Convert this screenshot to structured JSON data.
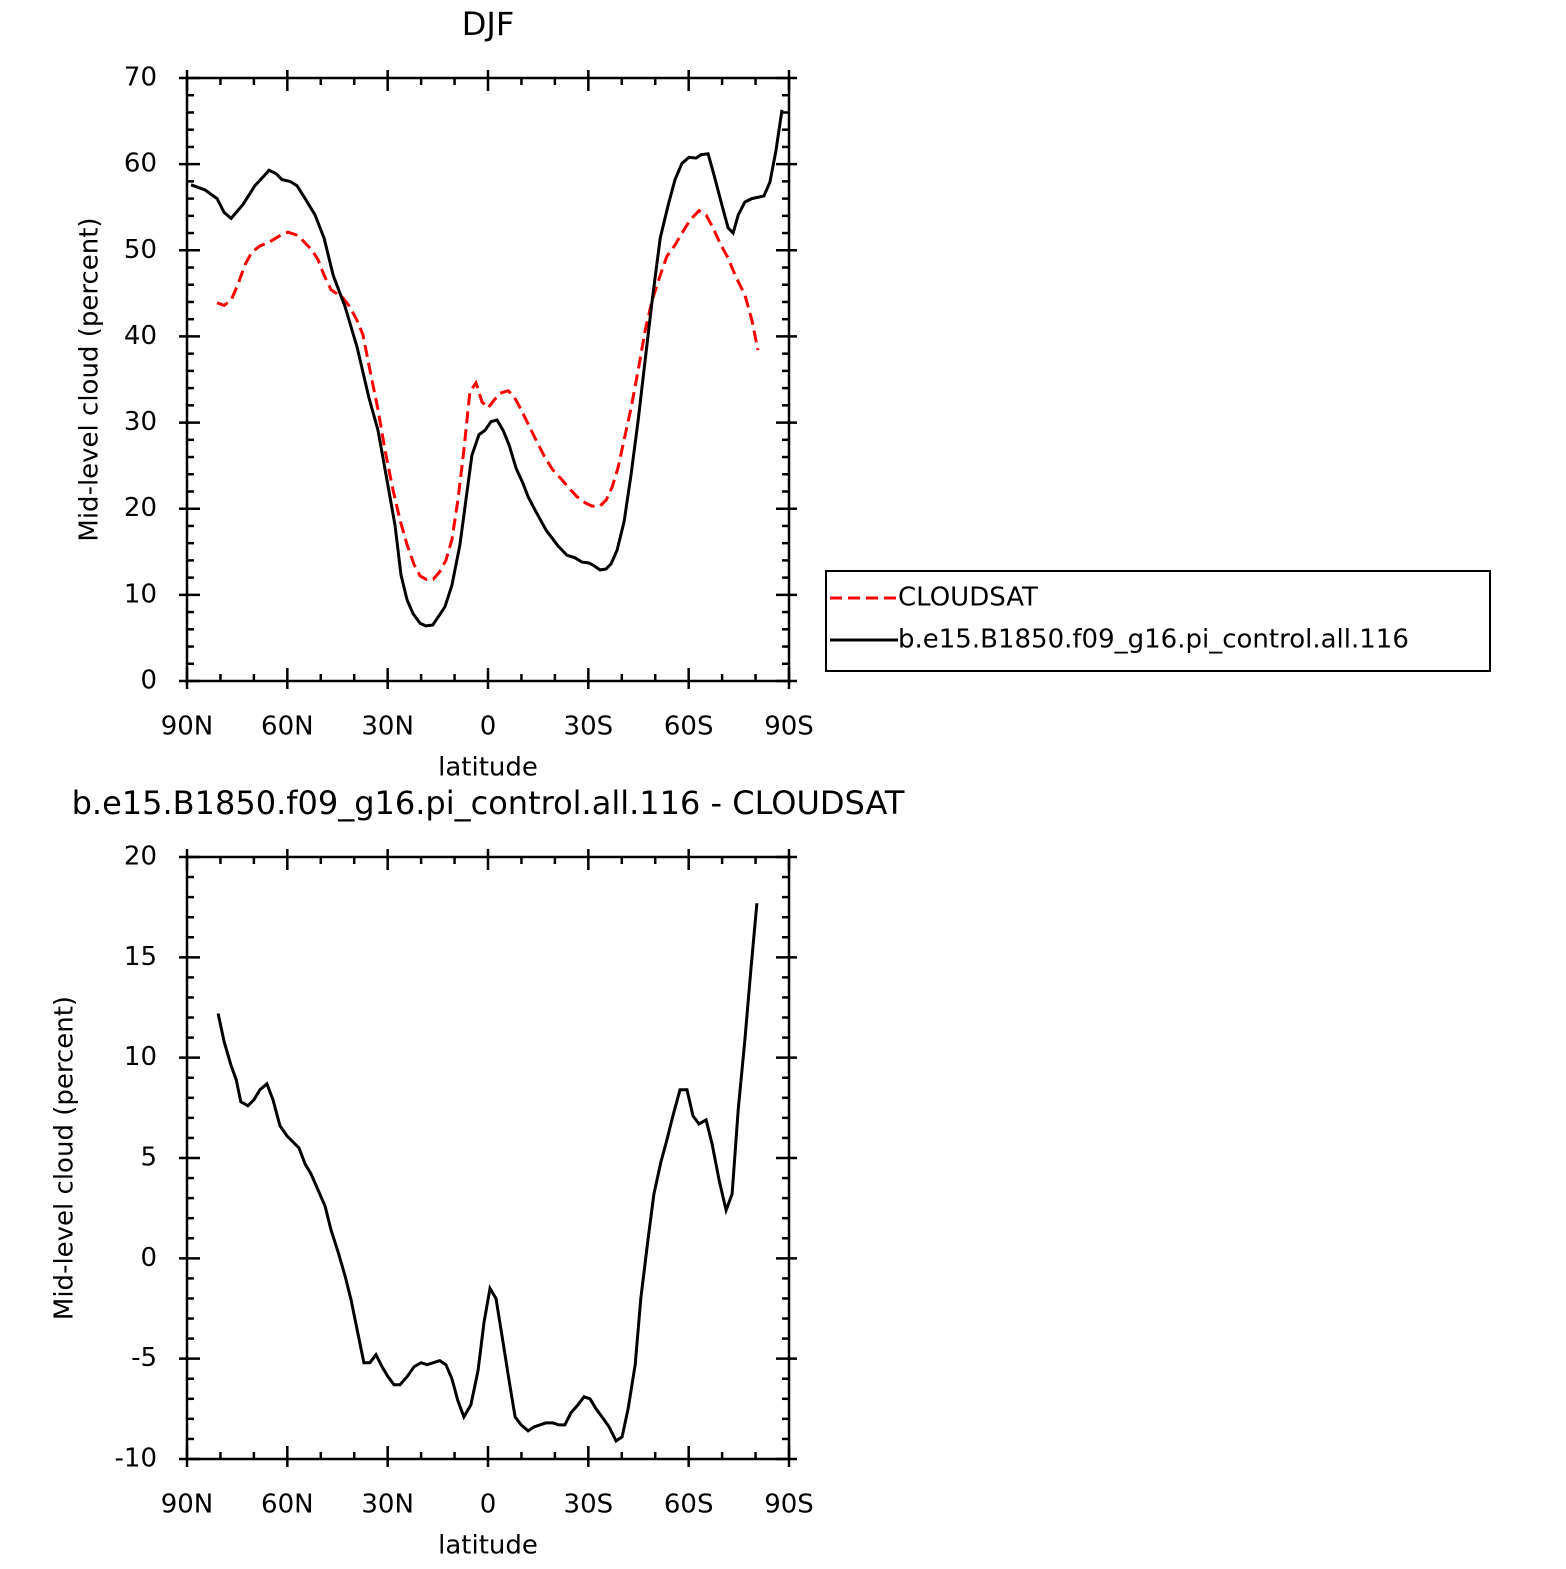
{
  "chart_data": [
    {
      "type": "line",
      "title": "DJF",
      "xlabel": "latitude",
      "ylabel": "Mid-level cloud (percent)",
      "xlim": [
        90,
        -90
      ],
      "xticks": [
        {
          "value": 90,
          "label": "90N"
        },
        {
          "value": 60,
          "label": "60N"
        },
        {
          "value": 30,
          "label": "30N"
        },
        0,
        {
          "value": -30,
          "label": "30S"
        },
        {
          "value": -60,
          "label": "60S"
        },
        {
          "value": -90,
          "label": "90S"
        }
      ],
      "ylim": [
        0,
        70
      ],
      "yticks": [
        0,
        10,
        20,
        30,
        40,
        50,
        60,
        70
      ],
      "legend": "right",
      "series": [
        {
          "name": "CLOUDSAT",
          "color": "#ff0000",
          "dash": true,
          "x": [
            81.0,
            78.9,
            76.8,
            74.8,
            72.7,
            70.6,
            68.2,
            65.2,
            62.2,
            59.8,
            57.4,
            55.3,
            52.6,
            50.8,
            49.0,
            46.9,
            43.4,
            41.3,
            39.2,
            37.4,
            35.3,
            32.9,
            30.8,
            28.4,
            26.3,
            24.2,
            22.1,
            20.3,
            18.5,
            16.4,
            14.4,
            12.6,
            10.8,
            9.0,
            7.2,
            5.4,
            3.6,
            1.8,
            0.0,
            -1.8,
            -3.6,
            -6.0,
            -7.8,
            -9.9,
            -12.3,
            -14.7,
            -17.1,
            -19.4,
            -21.8,
            -24.2,
            -26.6,
            -29.0,
            -31.1,
            -33.5,
            -35.3,
            -37.1,
            -38.9,
            -40.7,
            -42.8,
            -44.9,
            -47.0,
            -49.1,
            -51.5,
            -53.5,
            -55.9,
            -58.0,
            -60.4,
            -63.1,
            -65.2,
            -67.3,
            -69.4,
            -71.8,
            -73.9,
            -76.8,
            -78.9,
            -80.7
          ],
          "values": [
            43.9,
            43.6,
            44.2,
            46.0,
            48.3,
            49.8,
            50.5,
            51.0,
            51.7,
            52.1,
            51.8,
            51.1,
            50.0,
            48.9,
            47.1,
            45.4,
            44.5,
            43.4,
            41.9,
            40.2,
            36.1,
            31.5,
            26.8,
            22.2,
            18.7,
            15.8,
            13.5,
            12.2,
            11.8,
            11.8,
            12.7,
            14.0,
            16.4,
            21.0,
            26.8,
            33.6,
            34.6,
            32.4,
            31.7,
            32.6,
            33.4,
            33.7,
            33.0,
            31.5,
            29.6,
            27.7,
            25.9,
            24.5,
            23.5,
            22.4,
            21.4,
            20.7,
            20.3,
            20.3,
            21.0,
            22.5,
            24.8,
            28.0,
            31.7,
            36.1,
            40.7,
            44.2,
            47.1,
            49.3,
            50.6,
            52.0,
            53.5,
            54.6,
            54.1,
            52.6,
            50.8,
            49.1,
            47.1,
            44.8,
            41.9,
            38.4
          ]
        },
        {
          "name": "b.e15.B1850.f09_g16.pi_control.all.116",
          "color": "#000000",
          "dash": false,
          "x": [
            88.8,
            84.6,
            81.0,
            78.9,
            76.8,
            73.3,
            69.7,
            66.1,
            65.5,
            63.4,
            61.6,
            59.2,
            57.1,
            54.7,
            51.7,
            49.0,
            46.3,
            42.7,
            39.1,
            35.6,
            32.9,
            30.2,
            27.8,
            26.0,
            24.2,
            22.4,
            20.3,
            18.6,
            16.5,
            12.9,
            10.8,
            8.4,
            6.6,
            4.8,
            2.7,
            0.9,
            -0.9,
            -2.7,
            -4.5,
            -6.3,
            -8.4,
            -10.5,
            -12.0,
            -14.4,
            -17.4,
            -20.9,
            -23.6,
            -26.0,
            -28.1,
            -30.2,
            -31.7,
            -33.5,
            -35.3,
            -36.8,
            -38.6,
            -40.7,
            -42.8,
            -44.9,
            -47.0,
            -49.1,
            -51.5,
            -53.9,
            -55.9,
            -58.0,
            -60.1,
            -62.2,
            -63.7,
            -65.8,
            -67.6,
            -69.7,
            -71.8,
            -73.3,
            -74.8,
            -76.8,
            -78.9,
            -82.5,
            -84.3,
            -86.1,
            -87.9
          ],
          "values": [
            57.6,
            57.0,
            56.0,
            54.4,
            53.7,
            55.3,
            57.5,
            59.0,
            59.3,
            58.9,
            58.2,
            58.0,
            57.5,
            56.0,
            54.1,
            51.4,
            47.1,
            43.4,
            38.7,
            32.9,
            29.1,
            23.3,
            18.1,
            12.3,
            9.4,
            7.8,
            6.7,
            6.4,
            6.5,
            8.6,
            11.1,
            15.8,
            21.0,
            26.2,
            28.6,
            29.1,
            30.1,
            30.3,
            29.1,
            27.4,
            24.7,
            22.9,
            21.4,
            19.6,
            17.5,
            15.7,
            14.6,
            14.3,
            13.8,
            13.7,
            13.4,
            12.9,
            13.0,
            13.6,
            15.2,
            18.5,
            24.0,
            30.3,
            37.3,
            44.2,
            51.4,
            55.3,
            58.2,
            60.1,
            60.8,
            60.7,
            61.1,
            61.2,
            58.7,
            55.6,
            52.6,
            52.0,
            54.1,
            55.6,
            56.0,
            56.3,
            57.9,
            61.6,
            66.3
          ]
        }
      ]
    },
    {
      "type": "line",
      "title": "b.e15.B1850.f09_g16.pi_control.all.116 - CLOUDSAT",
      "xlabel": "latitude",
      "ylabel": "Mid-level cloud (percent)",
      "xlim": [
        90,
        -90
      ],
      "xticks": [
        {
          "value": 90,
          "label": "90N"
        },
        {
          "value": 60,
          "label": "60N"
        },
        {
          "value": 30,
          "label": "30N"
        },
        0,
        {
          "value": -30,
          "label": "30S"
        },
        {
          "value": -60,
          "label": "60S"
        },
        {
          "value": -90,
          "label": "90S"
        }
      ],
      "ylim": [
        -10,
        20
      ],
      "yticks": [
        -10,
        -5,
        0,
        5,
        10,
        15,
        20
      ],
      "series": [
        {
          "color": "#000000",
          "dash": false,
          "x": [
            80.7,
            78.9,
            76.8,
            75.3,
            73.9,
            71.8,
            70.0,
            68.2,
            66.1,
            64.3,
            62.2,
            60.1,
            58.3,
            56.5,
            54.7,
            52.9,
            50.8,
            48.7,
            46.9,
            44.8,
            42.7,
            40.9,
            39.2,
            37.1,
            35.3,
            33.5,
            31.7,
            29.9,
            28.1,
            26.3,
            24.2,
            22.1,
            20.0,
            18.2,
            16.4,
            14.4,
            12.6,
            10.8,
            9.0,
            7.2,
            5.1,
            3.0,
            1.2,
            -0.6,
            -2.4,
            -4.5,
            -6.3,
            -8.1,
            -9.9,
            -12.0,
            -13.8,
            -15.5,
            -17.3,
            -19.4,
            -21.2,
            -23.0,
            -24.8,
            -26.9,
            -28.7,
            -30.5,
            -32.3,
            -34.1,
            -36.2,
            -38.3,
            -40.1,
            -41.9,
            -44.0,
            -45.7,
            -47.8,
            -49.6,
            -51.7,
            -53.5,
            -55.3,
            -57.4,
            -59.5,
            -61.3,
            -63.1,
            -65.2,
            -67.0,
            -69.1,
            -71.2,
            -73.0,
            -74.8,
            -76.8,
            -78.6,
            -80.4
          ],
          "values": [
            12.2,
            10.8,
            9.6,
            8.9,
            7.8,
            7.6,
            7.9,
            8.4,
            8.7,
            7.9,
            6.6,
            6.1,
            5.8,
            5.5,
            4.7,
            4.2,
            3.4,
            2.6,
            1.4,
            0.3,
            -0.9,
            -2.1,
            -3.5,
            -5.2,
            -5.2,
            -4.8,
            -5.4,
            -5.9,
            -6.3,
            -6.3,
            -5.9,
            -5.4,
            -5.2,
            -5.3,
            -5.2,
            -5.1,
            -5.3,
            -6.0,
            -7.1,
            -7.9,
            -7.3,
            -5.6,
            -3.2,
            -1.5,
            -2.0,
            -4.2,
            -6.1,
            -7.9,
            -8.3,
            -8.6,
            -8.4,
            -8.3,
            -8.2,
            -8.2,
            -8.3,
            -8.3,
            -7.7,
            -7.3,
            -6.9,
            -7.0,
            -7.5,
            -7.9,
            -8.4,
            -9.1,
            -8.9,
            -7.5,
            -5.3,
            -2.0,
            0.9,
            3.2,
            4.8,
            5.9,
            7.1,
            8.4,
            8.4,
            7.1,
            6.7,
            6.9,
            5.7,
            3.9,
            2.4,
            3.2,
            7.4,
            10.9,
            14.4,
            17.7
          ]
        }
      ]
    }
  ]
}
